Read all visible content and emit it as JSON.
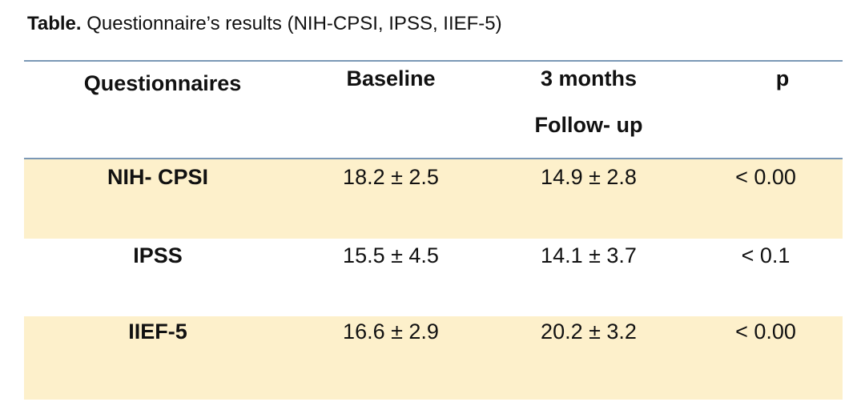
{
  "caption": {
    "label": "Table.",
    "text": "Questionnaire’s results (NIH-CPSI, IPSS, IIEF-5)"
  },
  "table": {
    "header": [
      "Questionnaires",
      "Baseline",
      [
        "3 months",
        "Follow- up"
      ],
      "p"
    ],
    "rows": [
      [
        "NIH- CPSI",
        "18.2 ± 2.5",
        "14.9 ± 2.8",
        "< 0.00"
      ],
      [
        "IPSS",
        "15.5 ± 4.5",
        "14.1 ± 3.7",
        "< 0.1"
      ],
      [
        "IIEF-5",
        "16.6 ± 2.9",
        "20.2 ± 3.2",
        "< 0.00"
      ]
    ]
  }
}
